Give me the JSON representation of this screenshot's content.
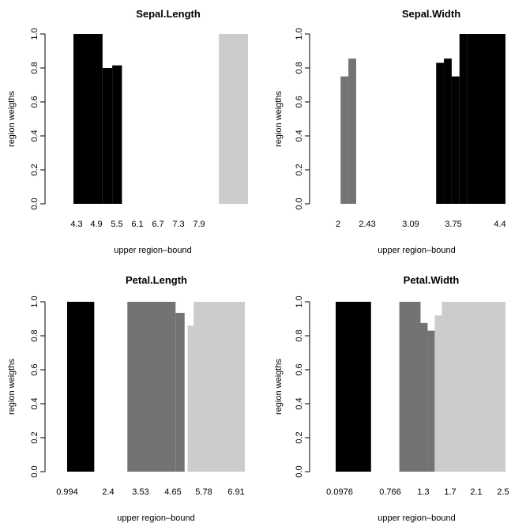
{
  "chart_data": [
    {
      "type": "bar",
      "title": "Sepal.Length",
      "xlabel": "upper region–bound",
      "ylabel": "region weigths",
      "ylim": [
        0,
        1
      ],
      "yticks": [
        "0.0",
        "0.2",
        "0.4",
        "0.6",
        "0.8",
        "1.0"
      ],
      "xticks": [
        "4.3",
        "4.9",
        "5.5",
        "6.1",
        "6.7",
        "7.3",
        "7.9"
      ],
      "x_domain": [
        4.3,
        7.9
      ],
      "bars": [
        {
          "x0": 4.3,
          "x1": 4.9,
          "value": 1.0,
          "color": "#000000"
        },
        {
          "x0": 4.9,
          "x1": 5.1,
          "value": 0.8,
          "color": "#000000"
        },
        {
          "x0": 5.1,
          "x1": 5.3,
          "value": 0.815,
          "color": "#000000"
        },
        {
          "x0": 7.3,
          "x1": 7.9,
          "value": 1.0,
          "color": "#cccccc"
        }
      ]
    },
    {
      "type": "bar",
      "title": "Sepal.Width",
      "xlabel": "upper region–bound",
      "ylabel": "region weigths",
      "ylim": [
        0,
        1
      ],
      "yticks": [
        "0.0",
        "0.2",
        "0.4",
        "0.6",
        "0.8",
        "1.0"
      ],
      "xticks": [
        "2",
        "2.43",
        "3.09",
        "3.75",
        "4.4"
      ],
      "x_domain": [
        2.0,
        4.4
      ],
      "bars": [
        {
          "x0": 2.07,
          "x1": 2.18,
          "value": 0.75,
          "color": "#737373"
        },
        {
          "x0": 2.18,
          "x1": 2.29,
          "value": 0.855,
          "color": "#737373"
        },
        {
          "x0": 3.42,
          "x1": 3.53,
          "value": 0.83,
          "color": "#000000"
        },
        {
          "x0": 3.53,
          "x1": 3.64,
          "value": 0.855,
          "color": "#000000"
        },
        {
          "x0": 3.64,
          "x1": 3.75,
          "value": 0.75,
          "color": "#000000"
        },
        {
          "x0": 3.75,
          "x1": 3.86,
          "value": 1.0,
          "color": "#000000"
        },
        {
          "x0": 3.86,
          "x1": 4.4,
          "value": 1.0,
          "color": "#000000"
        }
      ]
    },
    {
      "type": "bar",
      "title": "Petal.Length",
      "xlabel": "upper region–bound",
      "ylabel": "region weigths",
      "ylim": [
        0,
        1
      ],
      "yticks": [
        "0.0",
        "0.2",
        "0.4",
        "0.6",
        "0.8",
        "1.0"
      ],
      "xticks": [
        "0.994",
        "2.4",
        "3.53",
        "4.65",
        "5.78",
        "6.91"
      ],
      "x_domain": [
        1.0,
        6.9
      ],
      "bars": [
        {
          "x0": 1.0,
          "x1": 1.9,
          "value": 1.0,
          "color": "#000000"
        },
        {
          "x0": 3.0,
          "x1": 4.6,
          "value": 1.0,
          "color": "#737373"
        },
        {
          "x0": 4.6,
          "x1": 4.9,
          "value": 0.935,
          "color": "#737373"
        },
        {
          "x0": 5.0,
          "x1": 5.2,
          "value": 0.86,
          "color": "#cccccc"
        },
        {
          "x0": 5.2,
          "x1": 6.9,
          "value": 1.0,
          "color": "#cccccc"
        }
      ]
    },
    {
      "type": "bar",
      "title": "Petal.Width",
      "xlabel": "upper region–bound",
      "ylabel": "region weigths",
      "ylim": [
        0,
        1
      ],
      "yticks": [
        "0.0",
        "0.2",
        "0.4",
        "0.6",
        "0.8",
        "1.0"
      ],
      "xticks": [
        "0.0976",
        "0.766",
        "1.3",
        "1.7",
        "2.1",
        "2.5"
      ],
      "x_domain": [
        0.1,
        2.5
      ],
      "bars": [
        {
          "x0": 0.1,
          "x1": 0.6,
          "value": 1.0,
          "color": "#000000"
        },
        {
          "x0": 1.0,
          "x1": 1.3,
          "value": 1.0,
          "color": "#737373"
        },
        {
          "x0": 1.3,
          "x1": 1.4,
          "value": 0.875,
          "color": "#737373"
        },
        {
          "x0": 1.4,
          "x1": 1.5,
          "value": 0.83,
          "color": "#737373"
        },
        {
          "x0": 1.5,
          "x1": 1.6,
          "value": 0.92,
          "color": "#cccccc"
        },
        {
          "x0": 1.6,
          "x1": 2.5,
          "value": 1.0,
          "color": "#cccccc"
        }
      ]
    }
  ]
}
